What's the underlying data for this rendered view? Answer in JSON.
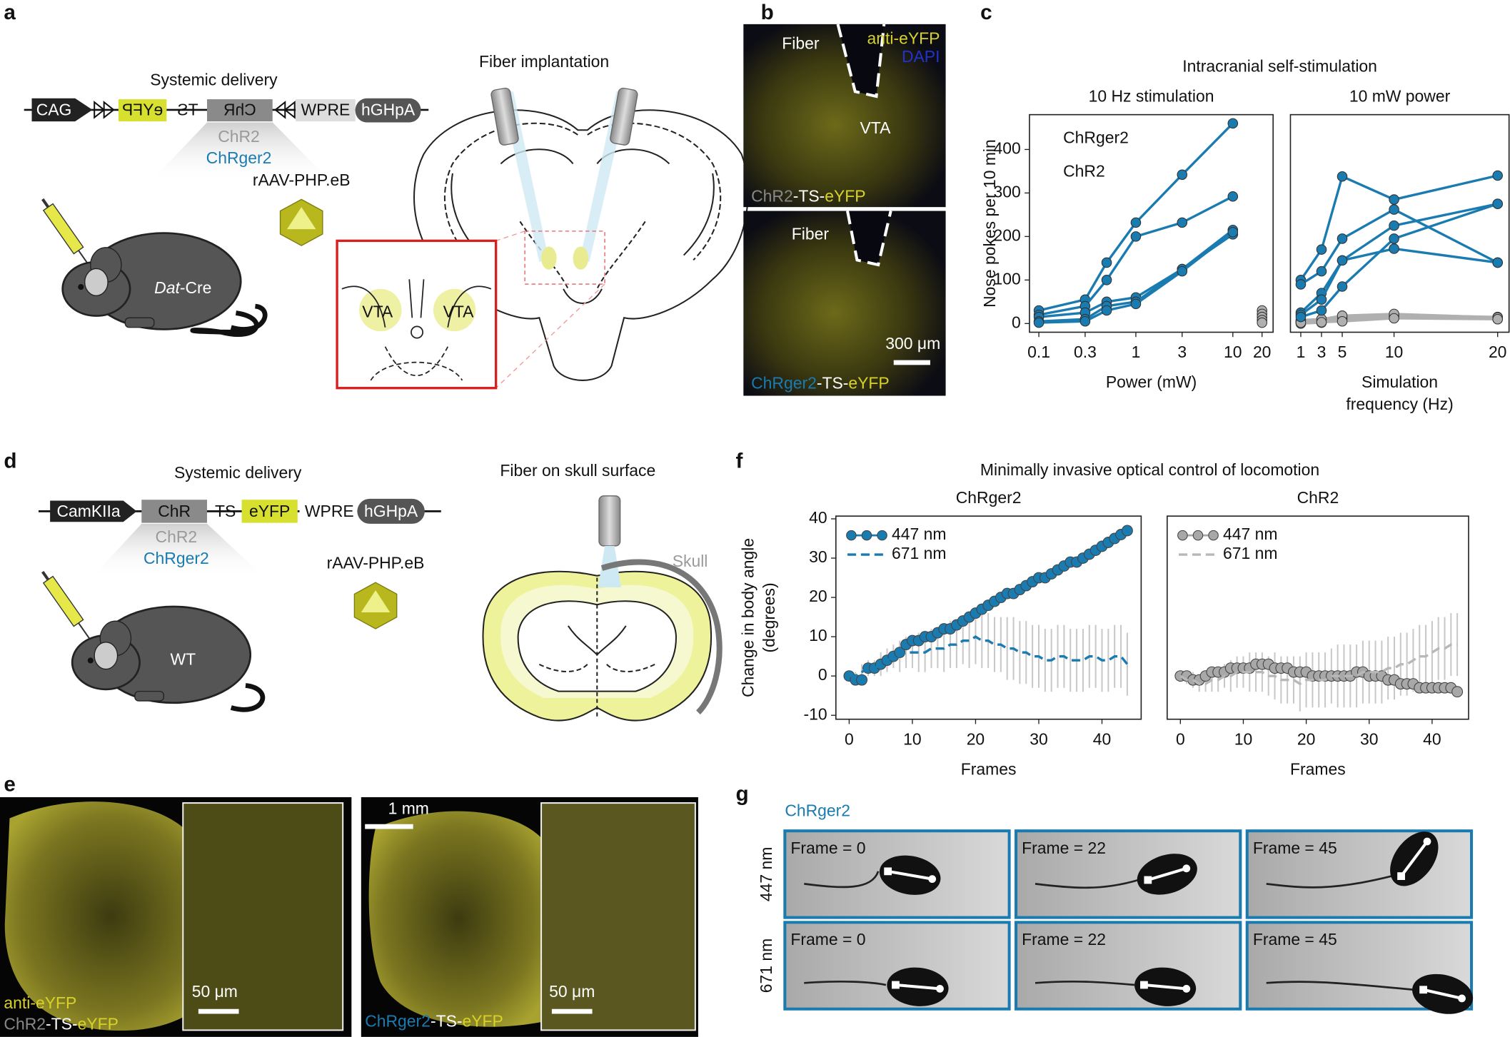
{
  "panels": {
    "a": {
      "label": "a",
      "heading": "Systemic delivery",
      "construct": [
        "CAG",
        "eYFP",
        "TS",
        "ChR",
        "WPRE",
        "hGHpA"
      ],
      "variants": [
        "ChR2",
        "ChRger2"
      ],
      "vector": "rAAV-PHP.eB",
      "mouse": [
        "Dat",
        "-Cre"
      ],
      "implant": "Fiber implantation",
      "regions": [
        "VTA",
        "VTA"
      ]
    },
    "b": {
      "label": "b",
      "top": {
        "fiber": "Fiber",
        "stain": "anti-eYFP",
        "dapi": "DAPI",
        "region": "VTA",
        "caption": [
          "ChR2",
          "-TS-",
          "eYFP"
        ]
      },
      "bottom": {
        "fiber": "Fiber",
        "scale": "300 μm",
        "caption": [
          "ChRger2",
          "-TS-",
          "eYFP"
        ]
      }
    },
    "c": {
      "label": "c",
      "title": "Intracranial self-stimulation"
    },
    "d": {
      "label": "d",
      "heading": "Systemic delivery",
      "construct": [
        "CamKIIa",
        "ChR",
        "TS",
        "eYFP",
        "WPRE",
        "hGHpA"
      ],
      "variants": [
        "ChR2",
        "ChRger2"
      ],
      "vector": "rAAV-PHP.eB",
      "mouse": "WT",
      "implant": "Fiber on skull surface",
      "skull": "Skull"
    },
    "e": {
      "label": "e",
      "left": {
        "stain": "anti-eYFP",
        "caption": [
          "ChR2",
          "-TS-",
          "eYFP"
        ],
        "scale": "50 μm"
      },
      "right": {
        "scale_main": "1 mm",
        "caption": [
          "ChRger2",
          "-TS-",
          "eYFP"
        ],
        "scale": "50 μm"
      }
    },
    "f": {
      "label": "f",
      "title": "Minimally invasive optical control of locomotion"
    },
    "g": {
      "label": "g",
      "title": "ChRger2",
      "rows": [
        "447 nm",
        "671 nm"
      ],
      "frames": [
        "Frame = 0",
        "Frame = 22",
        "Frame = 45"
      ]
    }
  },
  "chart_data": [
    {
      "type": "line",
      "title": "10 Hz stimulation",
      "xlabel": "Power (mW)",
      "ylabel": "Nose pokes per 10 min",
      "xscale": "log",
      "xlim": [
        0.08,
        26
      ],
      "xticks": [
        0.1,
        0.3,
        1,
        3,
        10,
        20
      ],
      "ylim": [
        -20,
        480
      ],
      "yticks": [
        0,
        100,
        200,
        300,
        400
      ],
      "legend": "upper left",
      "groups": [
        {
          "name": "ChR2",
          "color": "#b0b0b0",
          "x": [
            20
          ],
          "lines": [
            [
              30
            ],
            [
              22
            ],
            [
              15
            ],
            [
              8
            ],
            [
              2
            ]
          ]
        },
        {
          "name": "ChRger2",
          "color": "#1a7bb0",
          "x": [
            0.1,
            0.3,
            0.5,
            1,
            3,
            10
          ],
          "lines": [
            [
              30,
              55,
              140,
              232,
              342,
              460
            ],
            [
              20,
              40,
              100,
              200,
              232,
              292
            ],
            [
              15,
              25,
              50,
              60,
              125,
              215
            ],
            [
              5,
              10,
              40,
              50,
              125,
              205
            ],
            [
              2,
              5,
              30,
              45,
              120,
              210
            ]
          ]
        }
      ]
    },
    {
      "type": "line",
      "title": "10 mW power",
      "xlabel": [
        "Simulation",
        "frequency (Hz)"
      ],
      "xlim": [
        0,
        21.1
      ],
      "xticks": [
        1,
        3,
        5,
        10,
        20
      ],
      "ylim": [
        -20,
        480
      ],
      "groups": [
        {
          "name": "ChR2",
          "color": "#b0b0b0",
          "x": [
            1,
            3,
            5,
            10,
            20
          ],
          "lines": [
            [
              5,
              8,
              10,
              15,
              12
            ],
            [
              3,
              5,
              12,
              20,
              15
            ],
            [
              0,
              2,
              15,
              18,
              10
            ],
            [
              8,
              10,
              18,
              22,
              14
            ],
            [
              2,
              3,
              5,
              12,
              10
            ]
          ]
        },
        {
          "name": "ChRger2",
          "color": "#1a7bb0",
          "x": [
            1,
            3,
            5,
            10,
            20
          ],
          "lines": [
            [
              100,
              170,
              338,
              285,
              340
            ],
            [
              90,
              120,
              195,
              262,
              140
            ],
            [
              25,
              70,
              145,
              225,
              275
            ],
            [
              20,
              55,
              145,
              172,
              140
            ],
            [
              15,
              30,
              85,
              195,
              275
            ]
          ]
        }
      ]
    },
    {
      "type": "line",
      "title": "ChRger2",
      "title_color": "#1a7bb0",
      "xlabel": "Frames",
      "ylabel": [
        "Change in body angle",
        "(degrees)"
      ],
      "xlim": [
        -2.1,
        46.2
      ],
      "xticks": [
        0,
        10,
        20,
        30,
        40
      ],
      "ylim": [
        -11,
        40.7
      ],
      "yticks": [
        -10,
        0,
        10,
        20,
        30,
        40
      ],
      "legend": "upper left",
      "x": [
        0,
        1,
        2,
        3,
        4,
        5,
        6,
        7,
        8,
        9,
        10,
        11,
        12,
        13,
        14,
        15,
        16,
        17,
        18,
        19,
        20,
        21,
        22,
        23,
        24,
        25,
        26,
        27,
        28,
        29,
        30,
        31,
        32,
        33,
        34,
        35,
        36,
        37,
        38,
        39,
        40,
        41,
        42,
        43,
        44
      ],
      "series": [
        {
          "name": "447 nm",
          "color": "#1a7bb0",
          "style": "markers",
          "values": [
            0,
            -1,
            -1,
            2,
            2,
            3,
            4,
            5,
            6,
            8,
            9,
            9,
            10,
            10,
            11,
            12,
            12,
            13,
            14,
            15,
            16,
            17,
            18,
            19,
            20,
            21,
            21,
            22,
            23,
            24,
            25,
            25,
            26,
            27,
            28,
            29,
            29,
            30,
            31,
            32,
            33,
            34,
            35,
            36,
            37
          ]
        },
        {
          "name": "671 nm",
          "color": "#1a7bb0",
          "style": "dashed",
          "values": [
            0,
            0,
            1,
            2,
            2,
            3,
            4,
            5,
            5,
            6,
            6,
            6,
            6,
            7,
            7,
            7,
            8,
            8,
            9,
            9,
            10,
            9,
            9,
            8,
            8,
            7,
            7,
            6,
            6,
            5,
            5,
            4,
            4,
            5,
            5,
            4,
            4,
            4,
            5,
            5,
            4,
            4,
            5,
            5,
            3
          ],
          "errors": [
            1,
            1,
            2,
            2,
            2,
            3,
            3,
            3,
            4,
            4,
            4,
            5,
            5,
            5,
            5,
            6,
            6,
            6,
            6,
            7,
            7,
            7,
            7,
            7,
            7,
            8,
            8,
            8,
            8,
            8,
            8,
            8,
            8,
            8,
            8,
            8,
            8,
            8,
            8,
            8,
            8,
            8,
            8,
            8,
            8
          ]
        }
      ]
    },
    {
      "type": "line",
      "title": "ChR2",
      "title_color": "#b0b0b0",
      "xlabel": "Frames",
      "xlim": [
        -2.1,
        45.8
      ],
      "xticks": [
        0,
        10,
        20,
        30,
        40
      ],
      "ylim": [
        -11,
        40.7
      ],
      "legend": "upper left",
      "x": [
        0,
        1,
        2,
        3,
        4,
        5,
        6,
        7,
        8,
        9,
        10,
        11,
        12,
        13,
        14,
        15,
        16,
        17,
        18,
        19,
        20,
        21,
        22,
        23,
        24,
        25,
        26,
        27,
        28,
        29,
        30,
        31,
        32,
        33,
        34,
        35,
        36,
        37,
        38,
        39,
        40,
        41,
        42,
        43,
        44
      ],
      "series": [
        {
          "name": "447 nm",
          "color": "#a8a8a8",
          "style": "markers",
          "values": [
            0,
            0,
            -1,
            -1,
            0,
            1,
            1,
            1,
            2,
            2,
            2,
            2,
            3,
            3,
            3,
            2,
            2,
            2,
            1,
            1,
            1,
            0,
            0,
            0,
            0,
            0,
            0,
            0,
            1,
            1,
            0,
            0,
            0,
            -1,
            -1,
            -2,
            -2,
            -2,
            -3,
            -3,
            -3,
            -3,
            -3,
            -3,
            -4
          ]
        },
        {
          "name": "671 nm",
          "color": "#b8b8b8",
          "style": "dashed",
          "values": [
            0,
            -1,
            -1,
            -2,
            -2,
            -1,
            -1,
            0,
            0,
            1,
            1,
            1,
            1,
            1,
            0,
            0,
            -1,
            -1,
            -1,
            -2,
            -1,
            -1,
            -1,
            -1,
            0,
            0,
            0,
            0,
            0,
            1,
            1,
            1,
            1,
            2,
            2,
            3,
            3,
            4,
            5,
            5,
            6,
            7,
            7,
            8,
            8
          ],
          "errors": [
            1,
            1,
            2,
            2,
            2,
            3,
            3,
            3,
            4,
            4,
            4,
            5,
            5,
            5,
            5,
            6,
            6,
            6,
            6,
            7,
            7,
            7,
            7,
            7,
            7,
            8,
            8,
            8,
            8,
            8,
            8,
            8,
            8,
            8,
            8,
            8,
            8,
            8,
            8,
            8,
            8,
            8,
            8,
            8,
            8
          ]
        }
      ]
    }
  ]
}
